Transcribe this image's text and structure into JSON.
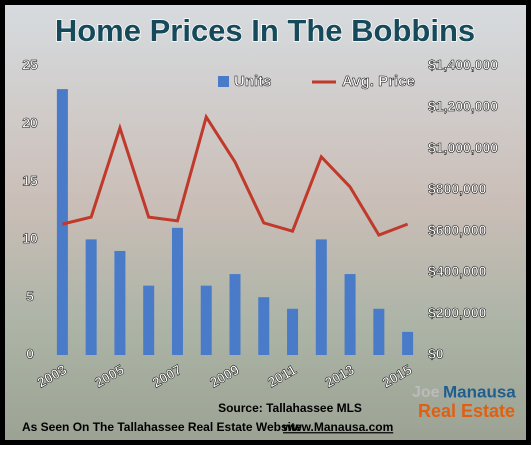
{
  "chart_data": {
    "type": "bar-line",
    "title": "Home Prices In The Bobbins",
    "categories": [
      "2003",
      null,
      "2005",
      null,
      "2007",
      null,
      "2009",
      null,
      "2011",
      null,
      "2013",
      null,
      "2015"
    ],
    "series": [
      {
        "name": "Units",
        "type": "bar",
        "color": "#4a7bc8",
        "values": [
          23,
          10,
          9,
          6,
          11,
          6,
          7,
          5,
          4,
          10,
          7,
          4,
          2
        ]
      },
      {
        "name": "Avg. Price",
        "type": "line",
        "axis": "y2",
        "color": "#c0392b",
        "values": [
          634000,
          668000,
          1100000,
          668000,
          650000,
          1153000,
          935000,
          640000,
          600000,
          960000,
          814000,
          581000,
          634000
        ]
      }
    ],
    "ylim": [
      0,
      25
    ],
    "yticks": [
      0,
      5,
      10,
      15,
      20,
      25
    ],
    "y2lim": [
      0,
      1400000
    ],
    "y2ticks": [
      {
        "value": 0,
        "label": "$0"
      },
      {
        "value": 200000,
        "label": "$200,000"
      },
      {
        "value": 400000,
        "label": "$400,000"
      },
      {
        "value": 600000,
        "label": "$600,000"
      },
      {
        "value": 800000,
        "label": "$800,000"
      },
      {
        "value": 1000000,
        "label": "$1,000,000"
      },
      {
        "value": 1200000,
        "label": "$1,200,000"
      },
      {
        "value": 1400000,
        "label": "$1,400,000"
      }
    ],
    "source": "Source: Tallahassee MLS",
    "footer": "As Seen On The Tallahassee Real Estate Website",
    "website": "www.Manausa.com",
    "logo": [
      "Joe",
      "Manausa",
      "Real Estate"
    ]
  }
}
